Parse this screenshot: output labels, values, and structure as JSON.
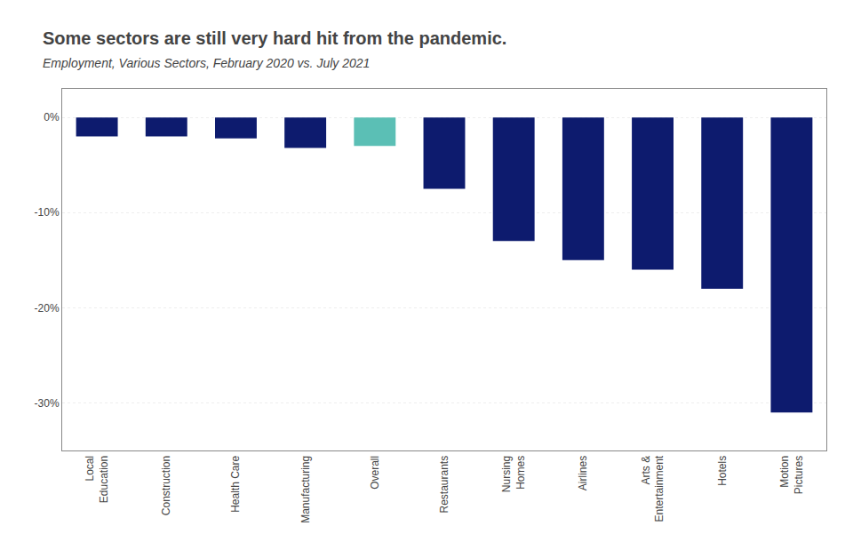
{
  "chart_data": {
    "type": "bar",
    "title": "Some sectors are still very hard hit from the pandemic.",
    "subtitle": "Employment, Various Sectors, February 2020 vs. July 2021",
    "categories": [
      "Local\nEducation",
      "Construction",
      "Health Care",
      "Manufacturing",
      "Overall",
      "Restaurants",
      "Nursing\nHomes",
      "Airlines",
      "Arts &\nEntertainment",
      "Hotels",
      "Motion\nPictures"
    ],
    "values": [
      -2.0,
      -2.0,
      -2.2,
      -3.2,
      -3.0,
      -7.5,
      -13.0,
      -15.0,
      -16.0,
      -18.0,
      -31.0
    ],
    "colors": [
      "#0d1b6e",
      "#0d1b6e",
      "#0d1b6e",
      "#0d1b6e",
      "#5bbfb5",
      "#0d1b6e",
      "#0d1b6e",
      "#0d1b6e",
      "#0d1b6e",
      "#0d1b6e",
      "#0d1b6e"
    ],
    "ylim": [
      -35,
      3
    ],
    "yticks": [
      {
        "value": 0,
        "label": "0%"
      },
      {
        "value": -10,
        "label": "-10%"
      },
      {
        "value": -20,
        "label": "-20%"
      },
      {
        "value": -30,
        "label": "-30%"
      }
    ],
    "grid": true
  }
}
